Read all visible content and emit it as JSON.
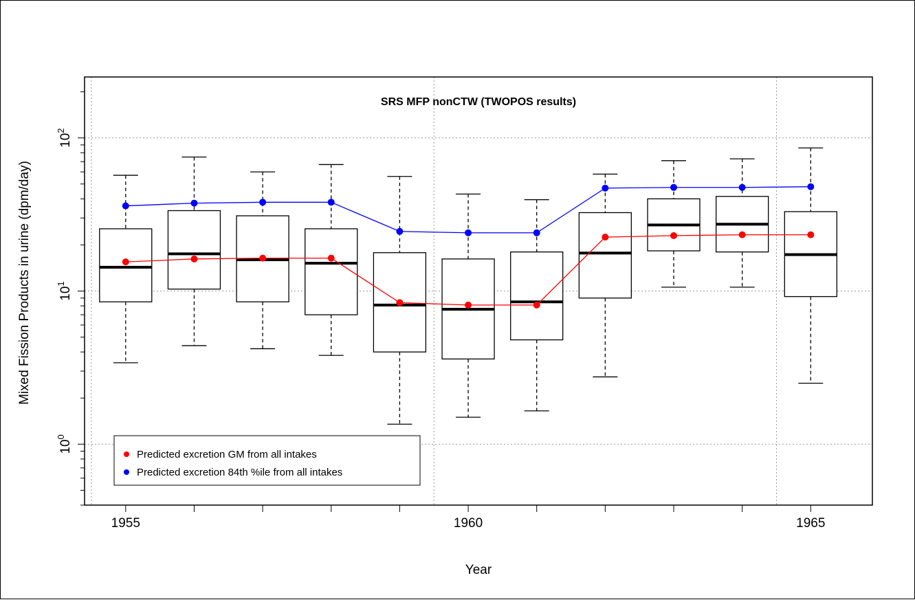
{
  "chart_data": {
    "type": "box",
    "title": "SRS MFP nonCTW (TWOPOS results)",
    "xlabel": "Year",
    "ylabel": "Mixed Fission Products in urine (dpm/day)",
    "yscale": "log",
    "xlim": [
      1954.4,
      1965.9
    ],
    "ylim": [
      0.4,
      250
    ],
    "grid": true,
    "x_ticks": [
      1955,
      1956,
      1957,
      1958,
      1959,
      1960,
      1961,
      1962,
      1963,
      1964,
      1965
    ],
    "x_tick_labels": [
      "1955",
      "",
      "",
      "",
      "",
      "1960",
      "",
      "",
      "",
      "",
      "1965"
    ],
    "x_grid": [
      1954.5,
      1959.5,
      1964.5
    ],
    "y_ticks": [
      1,
      10,
      100
    ],
    "y_tick_labels": [
      "10^0",
      "10^1",
      "10^2"
    ],
    "boxes": [
      {
        "x": 1955,
        "whisker_low": 3.4,
        "q1": 8.5,
        "median": 14.3,
        "q3": 25.5,
        "whisker_high": 57
      },
      {
        "x": 1956,
        "whisker_low": 4.4,
        "q1": 10.3,
        "median": 17.5,
        "q3": 33.5,
        "whisker_high": 75
      },
      {
        "x": 1957,
        "whisker_low": 4.2,
        "q1": 8.5,
        "median": 16.0,
        "q3": 31.0,
        "whisker_high": 60
      },
      {
        "x": 1958,
        "whisker_low": 3.8,
        "q1": 7.0,
        "median": 15.2,
        "q3": 25.5,
        "whisker_high": 67
      },
      {
        "x": 1959,
        "whisker_low": 1.35,
        "q1": 4.0,
        "median": 8.1,
        "q3": 17.8,
        "whisker_high": 56
      },
      {
        "x": 1960,
        "whisker_low": 1.5,
        "q1": 3.6,
        "median": 7.6,
        "q3": 16.2,
        "whisker_high": 43
      },
      {
        "x": 1961,
        "whisker_low": 1.65,
        "q1": 4.8,
        "median": 8.5,
        "q3": 18.0,
        "whisker_high": 39.5
      },
      {
        "x": 1962,
        "whisker_low": 2.75,
        "q1": 9.0,
        "median": 17.7,
        "q3": 32.5,
        "whisker_high": 58
      },
      {
        "x": 1963,
        "whisker_low": 10.6,
        "q1": 18.3,
        "median": 27.0,
        "q3": 40.0,
        "whisker_high": 71
      },
      {
        "x": 1964,
        "whisker_low": 10.6,
        "q1": 18.0,
        "median": 27.3,
        "q3": 41.5,
        "whisker_high": 73
      },
      {
        "x": 1965,
        "whisker_low": 2.5,
        "q1": 9.2,
        "median": 17.3,
        "q3": 33.0,
        "whisker_high": 86
      }
    ],
    "series": [
      {
        "name": "Predicted excretion GM from all intakes",
        "color": "#ff0000",
        "x": [
          1955,
          1956,
          1957,
          1958,
          1959,
          1960,
          1961,
          1962,
          1963,
          1964,
          1965
        ],
        "values": [
          15.5,
          16.2,
          16.4,
          16.4,
          8.4,
          8.1,
          8.1,
          22.5,
          23.0,
          23.3,
          23.3
        ]
      },
      {
        "name": "Predicted excretion 84th %ile from all intakes",
        "color": "#0000ff",
        "x": [
          1955,
          1956,
          1957,
          1958,
          1959,
          1960,
          1961,
          1962,
          1963,
          1964,
          1965
        ],
        "values": [
          36,
          37.5,
          38,
          38,
          24.5,
          24,
          24,
          47,
          47.5,
          47.5,
          48
        ]
      }
    ],
    "legend_position": "bottom-left"
  }
}
